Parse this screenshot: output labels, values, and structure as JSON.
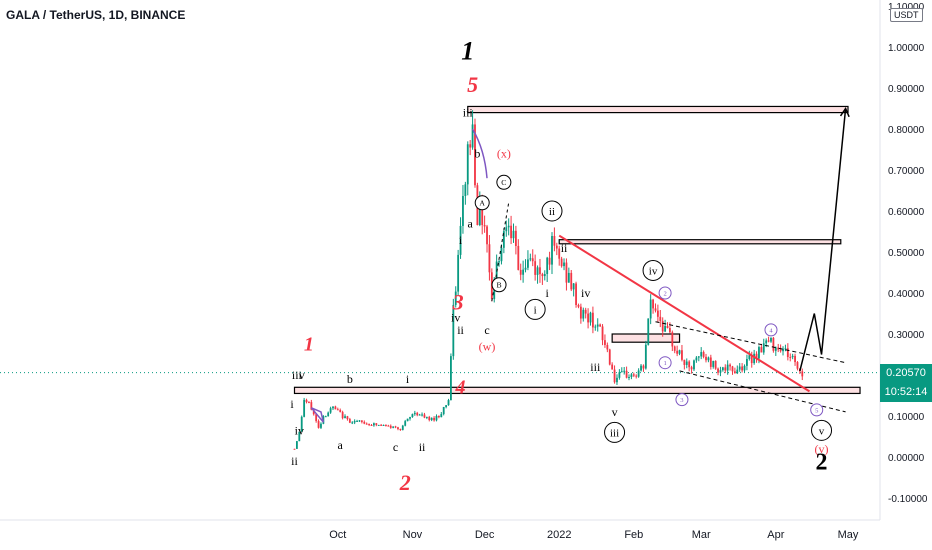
{
  "header": {
    "title": "GALA / TetherUS, 1D, BINANCE",
    "unit": "USDT"
  },
  "current_price": {
    "price": "0.20570",
    "countdown": "10:52:14"
  },
  "colors": {
    "up": "#089981",
    "down": "#f23645",
    "count_red": "#f23645",
    "count_black": "#000000",
    "count_purple": "#7e57c2",
    "trendline": "#f23645",
    "dashed": "#000000",
    "price_line": "#089981"
  },
  "chart_data": {
    "type": "candlestick",
    "title": "GALA / TetherUS, 1D, BINANCE",
    "xlabel": "",
    "ylabel": "",
    "ylim": [
      -0.15,
      1.11
    ],
    "grid": false,
    "y_ticks": [
      "1.10000",
      "1.00000",
      "0.90000",
      "0.80000",
      "0.70000",
      "0.60000",
      "0.50000",
      "0.40000",
      "0.30000",
      "0.20000",
      "0.10000",
      "0.00000",
      "-0.10000"
    ],
    "x_ticks": [
      "Oct",
      "Nov",
      "Dec",
      "2022",
      "Feb",
      "Mar",
      "Apr",
      "May"
    ],
    "price_path": [
      {
        "date": "2021-09-13",
        "price": 0.02
      },
      {
        "date": "2021-09-15",
        "price": 0.06
      },
      {
        "date": "2021-09-17",
        "price": 0.14
      },
      {
        "date": "2021-09-20",
        "price": 0.12
      },
      {
        "date": "2021-09-23",
        "price": 0.07
      },
      {
        "date": "2021-09-25",
        "price": 0.1
      },
      {
        "date": "2021-09-29",
        "price": 0.12
      },
      {
        "date": "2021-10-05",
        "price": 0.09
      },
      {
        "date": "2021-10-15",
        "price": 0.08
      },
      {
        "date": "2021-10-27",
        "price": 0.07
      },
      {
        "date": "2021-11-02",
        "price": 0.11
      },
      {
        "date": "2021-11-08",
        "price": 0.09
      },
      {
        "date": "2021-11-12",
        "price": 0.1
      },
      {
        "date": "2021-11-16",
        "price": 0.14
      },
      {
        "date": "2021-11-18",
        "price": 0.35
      },
      {
        "date": "2021-11-21",
        "price": 0.55
      },
      {
        "date": "2021-11-24",
        "price": 0.75
      },
      {
        "date": "2021-11-26",
        "price": 0.8
      },
      {
        "date": "2021-11-28",
        "price": 0.6
      },
      {
        "date": "2021-12-01",
        "price": 0.58
      },
      {
        "date": "2021-12-04",
        "price": 0.4
      },
      {
        "date": "2021-12-07",
        "price": 0.5
      },
      {
        "date": "2021-12-11",
        "price": 0.6
      },
      {
        "date": "2021-12-15",
        "price": 0.45
      },
      {
        "date": "2021-12-20",
        "price": 0.48
      },
      {
        "date": "2021-12-24",
        "price": 0.44
      },
      {
        "date": "2021-12-29",
        "price": 0.51
      },
      {
        "date": "2022-01-02",
        "price": 0.47
      },
      {
        "date": "2022-01-06",
        "price": 0.42
      },
      {
        "date": "2022-01-10",
        "price": 0.35
      },
      {
        "date": "2022-01-16",
        "price": 0.33
      },
      {
        "date": "2022-01-21",
        "price": 0.26
      },
      {
        "date": "2022-01-24",
        "price": 0.19
      },
      {
        "date": "2022-01-28",
        "price": 0.2
      },
      {
        "date": "2022-02-02",
        "price": 0.2
      },
      {
        "date": "2022-02-05",
        "price": 0.22
      },
      {
        "date": "2022-02-08",
        "price": 0.38
      },
      {
        "date": "2022-02-11",
        "price": 0.35
      },
      {
        "date": "2022-02-14",
        "price": 0.31
      },
      {
        "date": "2022-02-19",
        "price": 0.26
      },
      {
        "date": "2022-02-24",
        "price": 0.21
      },
      {
        "date": "2022-03-01",
        "price": 0.25
      },
      {
        "date": "2022-03-07",
        "price": 0.22
      },
      {
        "date": "2022-03-14",
        "price": 0.21
      },
      {
        "date": "2022-03-20",
        "price": 0.23
      },
      {
        "date": "2022-03-28",
        "price": 0.28
      },
      {
        "date": "2022-04-03",
        "price": 0.27
      },
      {
        "date": "2022-04-08",
        "price": 0.24
      },
      {
        "date": "2022-04-12",
        "price": 0.2
      }
    ],
    "zones": [
      {
        "from": "2021-11-24",
        "to": "2022-05-01",
        "low": 0.84,
        "high": 0.855
      },
      {
        "from": "2022-01-01",
        "to": "2022-04-28",
        "low": 0.52,
        "high": 0.53
      },
      {
        "from": "2022-01-23",
        "to": "2022-02-20",
        "low": 0.28,
        "high": 0.3
      },
      {
        "from": "2021-09-13",
        "to": "2022-05-06",
        "low": 0.155,
        "high": 0.17
      }
    ],
    "trendline": {
      "from": {
        "date": "2022-01-01",
        "price": 0.54
      },
      "to": {
        "date": "2022-04-15",
        "price": 0.16
      }
    },
    "channel": [
      {
        "from": {
          "date": "2022-02-10",
          "price": 0.33
        },
        "to": {
          "date": "2022-04-30",
          "price": 0.23
        }
      },
      {
        "from": {
          "date": "2022-02-20",
          "price": 0.21
        },
        "to": {
          "date": "2022-04-30",
          "price": 0.11
        }
      }
    ],
    "projection": [
      {
        "date": "2022-04-11",
        "price": 0.21
      },
      {
        "date": "2022-04-17",
        "price": 0.35
      },
      {
        "date": "2022-04-20",
        "price": 0.25
      },
      {
        "date": "2022-04-30",
        "price": 0.85
      }
    ],
    "annotations": [
      {
        "text": "1",
        "date": "2021-11-24",
        "price": 0.97,
        "color": "black",
        "size": 26,
        "italic": true,
        "weight": "bold"
      },
      {
        "text": "5",
        "date": "2021-11-26",
        "price": 0.89,
        "color": "red",
        "size": 22,
        "italic": true,
        "weight": "bold"
      },
      {
        "text": "1",
        "date": "2021-09-19",
        "price": 0.26,
        "color": "red",
        "size": 20,
        "italic": true,
        "weight": "bold"
      },
      {
        "text": "2",
        "date": "2021-10-29",
        "price": -0.08,
        "color": "red",
        "size": 22,
        "italic": true,
        "weight": "bold"
      },
      {
        "text": "3",
        "date": "2021-11-20",
        "price": 0.36,
        "color": "red",
        "size": 22,
        "italic": true,
        "weight": "bold"
      },
      {
        "text": "4",
        "date": "2021-11-21",
        "price": 0.155,
        "color": "red",
        "size": 20,
        "italic": true,
        "weight": "bold"
      },
      {
        "text": "2",
        "date": "2022-04-20",
        "price": -0.03,
        "color": "black",
        "size": 24,
        "weight": "bold"
      },
      {
        "text": "iii",
        "date": "2021-09-14",
        "price": 0.19,
        "color": "black",
        "size": 12
      },
      {
        "text": "v",
        "date": "2021-09-16",
        "price": 0.19,
        "color": "black",
        "size": 12
      },
      {
        "text": "i",
        "date": "2021-09-12",
        "price": 0.12,
        "color": "black",
        "size": 12
      },
      {
        "text": "iv",
        "date": "2021-09-15",
        "price": 0.055,
        "color": "black",
        "size": 12
      },
      {
        "text": "ii",
        "date": "2021-09-13",
        "price": -0.02,
        "color": "black",
        "size": 12
      },
      {
        "text": "b",
        "date": "2021-10-06",
        "price": 0.18,
        "color": "black",
        "size": 12
      },
      {
        "text": "a",
        "date": "2021-10-02",
        "price": 0.02,
        "color": "black",
        "size": 12
      },
      {
        "text": "i",
        "date": "2021-10-30",
        "price": 0.18,
        "color": "black",
        "size": 12
      },
      {
        "text": "c",
        "date": "2021-10-25",
        "price": 0.015,
        "color": "black",
        "size": 12
      },
      {
        "text": "ii",
        "date": "2021-11-05",
        "price": 0.015,
        "color": "black",
        "size": 12
      },
      {
        "text": "iv",
        "date": "2021-11-19",
        "price": 0.33,
        "color": "black",
        "size": 12
      },
      {
        "text": "ii",
        "date": "2021-11-21",
        "price": 0.3,
        "color": "black",
        "size": 12
      },
      {
        "text": "i",
        "date": "2021-11-21",
        "price": 0.52,
        "color": "black",
        "size": 12
      },
      {
        "text": "iii",
        "date": "2021-11-24",
        "price": 0.83,
        "color": "black",
        "size": 12
      },
      {
        "text": "b",
        "date": "2021-11-28",
        "price": 0.73,
        "color": "black",
        "size": 12
      },
      {
        "text": "a",
        "date": "2021-11-25",
        "price": 0.56,
        "color": "black",
        "size": 12
      },
      {
        "text": "(x)",
        "date": "2021-12-09",
        "price": 0.73,
        "color": "red",
        "size": 12
      },
      {
        "text": "c",
        "date": "2021-12-02",
        "price": 0.3,
        "color": "black",
        "size": 12
      },
      {
        "text": "(w)",
        "date": "2021-12-02",
        "price": 0.26,
        "color": "red",
        "size": 12
      },
      {
        "text": "i",
        "date": "2021-12-27",
        "price": 0.39,
        "color": "black",
        "size": 12
      },
      {
        "text": "ii",
        "date": "2022-01-03",
        "price": 0.5,
        "color": "black",
        "size": 12
      },
      {
        "text": "iv",
        "date": "2022-01-12",
        "price": 0.39,
        "color": "black",
        "size": 12
      },
      {
        "text": "iii",
        "date": "2022-01-16",
        "price": 0.21,
        "color": "black",
        "size": 12
      },
      {
        "text": "v",
        "date": "2022-01-24",
        "price": 0.1,
        "color": "black",
        "size": 12
      },
      {
        "text": "(v)",
        "date": "2022-04-20",
        "price": 0.01,
        "color": "red",
        "size": 12
      }
    ],
    "circles": [
      {
        "text": "ii",
        "date": "2021-12-29",
        "price": 0.6,
        "color": "black",
        "r": 10
      },
      {
        "text": "i",
        "date": "2021-12-22",
        "price": 0.36,
        "color": "black",
        "r": 10
      },
      {
        "text": "iv",
        "date": "2022-02-09",
        "price": 0.455,
        "color": "black",
        "r": 10
      },
      {
        "text": "iii",
        "date": "2022-01-24",
        "price": 0.06,
        "color": "black",
        "r": 10
      },
      {
        "text": "v",
        "date": "2022-04-20",
        "price": 0.065,
        "color": "black",
        "r": 10
      },
      {
        "text": "A",
        "date": "2021-11-30",
        "price": 0.62,
        "color": "black",
        "r": 7
      },
      {
        "text": "C",
        "date": "2021-12-09",
        "price": 0.67,
        "color": "black",
        "r": 7
      },
      {
        "text": "B",
        "date": "2021-12-07",
        "price": 0.42,
        "color": "black",
        "r": 7
      },
      {
        "text": "2",
        "date": "2022-02-14",
        "price": 0.4,
        "color": "purple",
        "r": 6
      },
      {
        "text": "1",
        "date": "2022-02-14",
        "price": 0.23,
        "color": "purple",
        "r": 6
      },
      {
        "text": "3",
        "date": "2022-02-21",
        "price": 0.14,
        "color": "purple",
        "r": 6
      },
      {
        "text": "4",
        "date": "2022-03-30",
        "price": 0.31,
        "color": "purple",
        "r": 6
      },
      {
        "text": "5",
        "date": "2022-04-18",
        "price": 0.115,
        "color": "purple",
        "r": 6
      }
    ]
  }
}
